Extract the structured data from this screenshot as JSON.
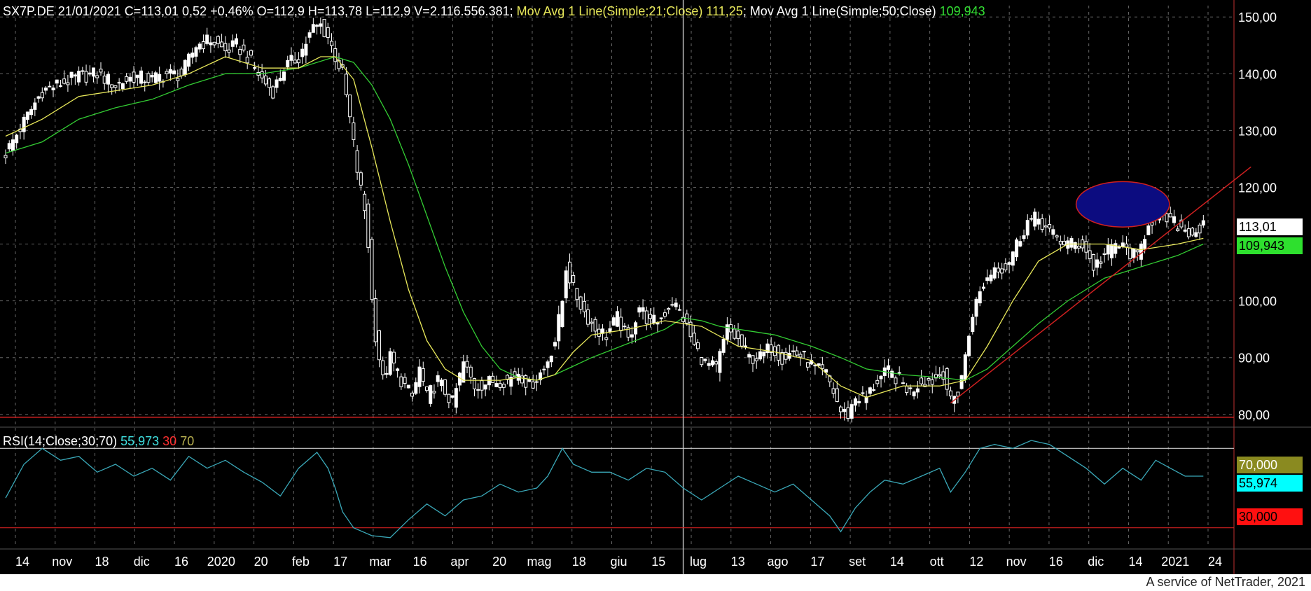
{
  "header": {
    "symbol_info": "SX7P.DE 21/01/2021 C=113,01 0,52 +0,46% O=112,9 H=113,78 L=112,9 V=2.116.556.381;",
    "ma21_label": " Mov Avg 1 Line(Simple;21;Close) ",
    "ma21_value": "111,25",
    "ma50_label": "; Mov Avg 1 Line(Simple;50;Close) ",
    "ma50_value": "109,943"
  },
  "rsi_header": {
    "label": "RSI(14;Close;30;70) ",
    "value": "55,973",
    "low": " 30",
    "high": " 70"
  },
  "price_tags": {
    "last": "113,01",
    "ma50": "109,943"
  },
  "rsi_tags": {
    "high": "70,000",
    "current": "55,974",
    "low": "30,000"
  },
  "footer": {
    "credit": "A service of NetTrader, 2021"
  },
  "colors": {
    "background": "#000000",
    "candle": "#ffffff",
    "ma21": "#e8e85a",
    "ma50": "#33cc33",
    "rsi": "#3aa8b8",
    "support": "#d02020",
    "ellipse": "#0c0c80",
    "grid": "#666666"
  },
  "chart_data": [
    {
      "type": "candlestick",
      "title": "SX7P.DE",
      "ylim": [
        78,
        152
      ],
      "yticks": [
        "150,00",
        "140,00",
        "130,00",
        "120,00",
        "110,00",
        "100,00",
        "90,00",
        "80,00"
      ],
      "ytick_values": [
        150,
        140,
        130,
        120,
        110,
        100,
        90,
        80
      ],
      "xticks": [
        "14",
        "nov",
        "18",
        "dic",
        "16",
        "2020",
        "20",
        "feb",
        "17",
        "mar",
        "16",
        "apr",
        "20",
        "mag",
        "18",
        "giu",
        "15",
        "lug",
        "13",
        "ago",
        "17",
        "set",
        "14",
        "ott",
        "12",
        "nov",
        "16",
        "dic",
        "14",
        "2021",
        "24"
      ],
      "close_path": [
        [
          0,
          126
        ],
        [
          10,
          137
        ],
        [
          20,
          139.5
        ],
        [
          25,
          140
        ],
        [
          30,
          138
        ],
        [
          35,
          139.5
        ],
        [
          40,
          139
        ],
        [
          44,
          140
        ],
        [
          48,
          139.8
        ],
        [
          52,
          145
        ],
        [
          56,
          146
        ],
        [
          60,
          144
        ],
        [
          63,
          145
        ],
        [
          66,
          143
        ],
        [
          70,
          139
        ],
        [
          73,
          137
        ],
        [
          76,
          141
        ],
        [
          80,
          143
        ],
        [
          84,
          148
        ],
        [
          86,
          148.5
        ],
        [
          88,
          146.5
        ],
        [
          90,
          143
        ],
        [
          92,
          140
        ],
        [
          94,
          132
        ],
        [
          96,
          123
        ],
        [
          98,
          116
        ],
        [
          99,
          110
        ],
        [
          100,
          100
        ],
        [
          101,
          94
        ],
        [
          102,
          90
        ],
        [
          103,
          86
        ],
        [
          105,
          90
        ],
        [
          108,
          86
        ],
        [
          111,
          83
        ],
        [
          113,
          88
        ],
        [
          115,
          83
        ],
        [
          118,
          86
        ],
        [
          122,
          82
        ],
        [
          125,
          89
        ],
        [
          128,
          85
        ],
        [
          131,
          85.5
        ],
        [
          134,
          86
        ],
        [
          137,
          86
        ],
        [
          140,
          87.5
        ],
        [
          143,
          85
        ],
        [
          147,
          88
        ],
        [
          150,
          93
        ],
        [
          152,
          100
        ],
        [
          153,
          106
        ],
        [
          155,
          102
        ],
        [
          158,
          98
        ],
        [
          161,
          95
        ],
        [
          164,
          94
        ],
        [
          167,
          97
        ],
        [
          170,
          93
        ],
        [
          173,
          99
        ],
        [
          176,
          96
        ],
        [
          179,
          97
        ],
        [
          182,
          100
        ],
        [
          185,
          97
        ],
        [
          188,
          92
        ],
        [
          191,
          89
        ],
        [
          194,
          88
        ],
        [
          197,
          95
        ],
        [
          200,
          93
        ],
        [
          203,
          90
        ],
        [
          206,
          90
        ],
        [
          209,
          92
        ],
        [
          212,
          90
        ],
        [
          215,
          91
        ],
        [
          218,
          90
        ],
        [
          221,
          88
        ],
        [
          224,
          87
        ],
        [
          226,
          84
        ],
        [
          228,
          80.5
        ],
        [
          230,
          80
        ],
        [
          232,
          83
        ],
        [
          235,
          83
        ],
        [
          238,
          86
        ],
        [
          241,
          87.5
        ],
        [
          244,
          86
        ],
        [
          247,
          84
        ],
        [
          250,
          86
        ],
        [
          253,
          86
        ],
        [
          256,
          87.5
        ],
        [
          258,
          82
        ],
        [
          260,
          84
        ],
        [
          262,
          90
        ],
        [
          264,
          98
        ],
        [
          267,
          103
        ],
        [
          270,
          106
        ],
        [
          273,
          106
        ],
        [
          276,
          110
        ],
        [
          279,
          114
        ],
        [
          282,
          114.5
        ],
        [
          285,
          112
        ],
        [
          288,
          110.5
        ],
        [
          291,
          110
        ],
        [
          294,
          110
        ],
        [
          297,
          106
        ],
        [
          300,
          108
        ],
        [
          303,
          110
        ],
        [
          306,
          109
        ],
        [
          309,
          107.5
        ],
        [
          312,
          114
        ],
        [
          315,
          115
        ],
        [
          318,
          114
        ],
        [
          321,
          113
        ],
        [
          324,
          112
        ],
        [
          327,
          113
        ]
      ],
      "ma21_path": [
        [
          0,
          129
        ],
        [
          10,
          132
        ],
        [
          20,
          136
        ],
        [
          30,
          137
        ],
        [
          40,
          138
        ],
        [
          50,
          140
        ],
        [
          60,
          143
        ],
        [
          70,
          141
        ],
        [
          80,
          141
        ],
        [
          86,
          143
        ],
        [
          90,
          143
        ],
        [
          95,
          139
        ],
        [
          100,
          127
        ],
        [
          105,
          114
        ],
        [
          110,
          102
        ],
        [
          115,
          93
        ],
        [
          120,
          88
        ],
        [
          125,
          86
        ],
        [
          130,
          86
        ],
        [
          135,
          86
        ],
        [
          140,
          86.5
        ],
        [
          145,
          86
        ],
        [
          150,
          87
        ],
        [
          155,
          91
        ],
        [
          160,
          94
        ],
        [
          170,
          95
        ],
        [
          180,
          96.5
        ],
        [
          190,
          95.5
        ],
        [
          200,
          92
        ],
        [
          210,
          91
        ],
        [
          220,
          89.5
        ],
        [
          228,
          85
        ],
        [
          235,
          83
        ],
        [
          245,
          85
        ],
        [
          255,
          85
        ],
        [
          262,
          86
        ],
        [
          268,
          92
        ],
        [
          275,
          100
        ],
        [
          282,
          107
        ],
        [
          290,
          110
        ],
        [
          300,
          110
        ],
        [
          310,
          109
        ],
        [
          320,
          110
        ],
        [
          327,
          111
        ]
      ],
      "ma50_path": [
        [
          0,
          126
        ],
        [
          10,
          128
        ],
        [
          20,
          132
        ],
        [
          30,
          134
        ],
        [
          40,
          135.5
        ],
        [
          50,
          138
        ],
        [
          60,
          140
        ],
        [
          70,
          140
        ],
        [
          80,
          141
        ],
        [
          90,
          143
        ],
        [
          95,
          142
        ],
        [
          100,
          138
        ],
        [
          105,
          132
        ],
        [
          110,
          124
        ],
        [
          115,
          115
        ],
        [
          120,
          106
        ],
        [
          125,
          98
        ],
        [
          130,
          92
        ],
        [
          135,
          88
        ],
        [
          140,
          86.5
        ],
        [
          145,
          86
        ],
        [
          150,
          87
        ],
        [
          155,
          88.5
        ],
        [
          160,
          90
        ],
        [
          170,
          92.5
        ],
        [
          180,
          95
        ],
        [
          185,
          97
        ],
        [
          190,
          96.5
        ],
        [
          195,
          95.5
        ],
        [
          200,
          95
        ],
        [
          210,
          94
        ],
        [
          220,
          92
        ],
        [
          228,
          90
        ],
        [
          235,
          88
        ],
        [
          245,
          87
        ],
        [
          255,
          86.5
        ],
        [
          262,
          86
        ],
        [
          268,
          88
        ],
        [
          275,
          92
        ],
        [
          282,
          96
        ],
        [
          290,
          100
        ],
        [
          300,
          104
        ],
        [
          310,
          106
        ],
        [
          320,
          108
        ],
        [
          327,
          110
        ]
      ],
      "support_line": [
        [
          258,
          82
        ],
        [
          327,
          117
        ]
      ],
      "hline": 79.5,
      "highlight_ellipse": {
        "cx": 305,
        "cy": 117,
        "rx": 13,
        "ry": 4
      },
      "crosshair_x": 185
    },
    {
      "type": "line",
      "title": "RSI(14;Close;30;70)",
      "ylim": [
        20,
        80
      ],
      "ytick_values": [
        70,
        50,
        30
      ],
      "levels": [
        70,
        30
      ],
      "rsi_path": [
        [
          0,
          45
        ],
        [
          5,
          62
        ],
        [
          10,
          70
        ],
        [
          15,
          64
        ],
        [
          20,
          66
        ],
        [
          25,
          58
        ],
        [
          30,
          62
        ],
        [
          35,
          56
        ],
        [
          40,
          60
        ],
        [
          45,
          54
        ],
        [
          50,
          66
        ],
        [
          55,
          60
        ],
        [
          60,
          64
        ],
        [
          65,
          58
        ],
        [
          70,
          53
        ],
        [
          75,
          46
        ],
        [
          80,
          60
        ],
        [
          85,
          68
        ],
        [
          88,
          60
        ],
        [
          90,
          50
        ],
        [
          92,
          38
        ],
        [
          95,
          30
        ],
        [
          100,
          26
        ],
        [
          105,
          25
        ],
        [
          110,
          34
        ],
        [
          115,
          42
        ],
        [
          120,
          36
        ],
        [
          125,
          44
        ],
        [
          130,
          46
        ],
        [
          135,
          52
        ],
        [
          140,
          48
        ],
        [
          145,
          50
        ],
        [
          148,
          56
        ],
        [
          152,
          70
        ],
        [
          155,
          62
        ],
        [
          160,
          58
        ],
        [
          165,
          58
        ],
        [
          170,
          54
        ],
        [
          175,
          60
        ],
        [
          180,
          58
        ],
        [
          185,
          50
        ],
        [
          190,
          44
        ],
        [
          195,
          50
        ],
        [
          200,
          56
        ],
        [
          205,
          52
        ],
        [
          210,
          48
        ],
        [
          215,
          52
        ],
        [
          220,
          44
        ],
        [
          225,
          36
        ],
        [
          228,
          28
        ],
        [
          232,
          40
        ],
        [
          236,
          48
        ],
        [
          240,
          54
        ],
        [
          245,
          52
        ],
        [
          250,
          56
        ],
        [
          255,
          60
        ],
        [
          258,
          48
        ],
        [
          262,
          58
        ],
        [
          266,
          70
        ],
        [
          270,
          72
        ],
        [
          275,
          70
        ],
        [
          280,
          74
        ],
        [
          285,
          72
        ],
        [
          290,
          66
        ],
        [
          295,
          60
        ],
        [
          300,
          52
        ],
        [
          305,
          60
        ],
        [
          310,
          54
        ],
        [
          314,
          64
        ],
        [
          318,
          60
        ],
        [
          322,
          56
        ],
        [
          327,
          56
        ]
      ]
    }
  ]
}
